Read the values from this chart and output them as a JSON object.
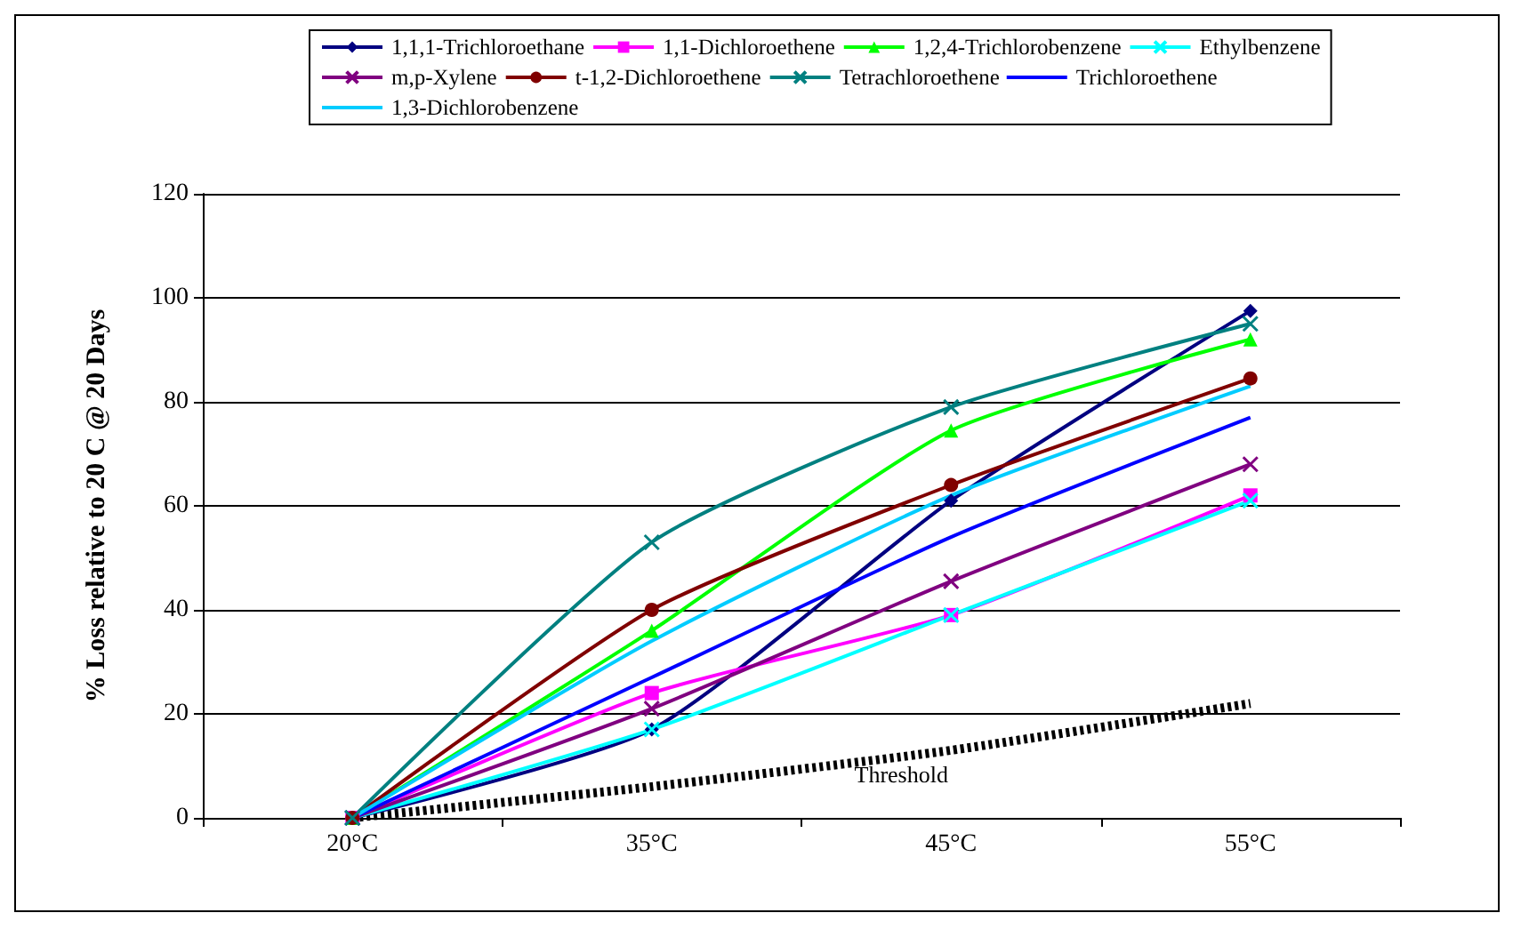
{
  "chart_data": {
    "type": "line",
    "ylabel": "% Loss relative to 20 C @ 20 Days",
    "categories": [
      "20°C",
      "35°C",
      "45°C",
      "55°C"
    ],
    "ylim": [
      0,
      120
    ],
    "yticks": [
      0,
      20,
      40,
      60,
      80,
      100,
      120
    ],
    "grid": "y",
    "legend": "top",
    "line_style": "solid",
    "series": [
      {
        "name": "1,1,1-Trichloroethane",
        "color": "#000080",
        "marker": "diamond",
        "values": [
          0,
          17,
          61,
          97.5
        ]
      },
      {
        "name": "1,1-Dichloroethene",
        "color": "#ff00ff",
        "marker": "square",
        "values": [
          0,
          24,
          39,
          62
        ]
      },
      {
        "name": "1,2,4-Trichlorobenzene",
        "color": "#00ff00",
        "marker": "triangle",
        "values": [
          0,
          36,
          74.5,
          92
        ]
      },
      {
        "name": "Ethylbenzene",
        "color": "#00ffff",
        "marker": "cross",
        "values": [
          0,
          17,
          39,
          61
        ]
      },
      {
        "name": "m,p-Xylene",
        "color": "#800080",
        "marker": "cross",
        "values": [
          0,
          21,
          45.5,
          68
        ]
      },
      {
        "name": "t-1,2-Dichloroethene",
        "color": "#800000",
        "marker": "circle",
        "values": [
          0,
          40,
          64,
          84.5
        ]
      },
      {
        "name": "Tetrachloroethene",
        "color": "#008080",
        "marker": "cross",
        "values": [
          0,
          53,
          79,
          95
        ]
      },
      {
        "name": "Trichloroethene",
        "color": "#0000ff",
        "marker": "none",
        "values": [
          0,
          27,
          54,
          77
        ]
      },
      {
        "name": "1,3-Dichlorobenzene",
        "color": "#00ccff",
        "marker": "none",
        "values": [
          0,
          34,
          62,
          83
        ]
      },
      {
        "name": "Threshold",
        "color": "#000000",
        "marker": "none",
        "line_style": "dotted",
        "values": [
          0,
          6,
          13,
          22
        ]
      }
    ]
  }
}
